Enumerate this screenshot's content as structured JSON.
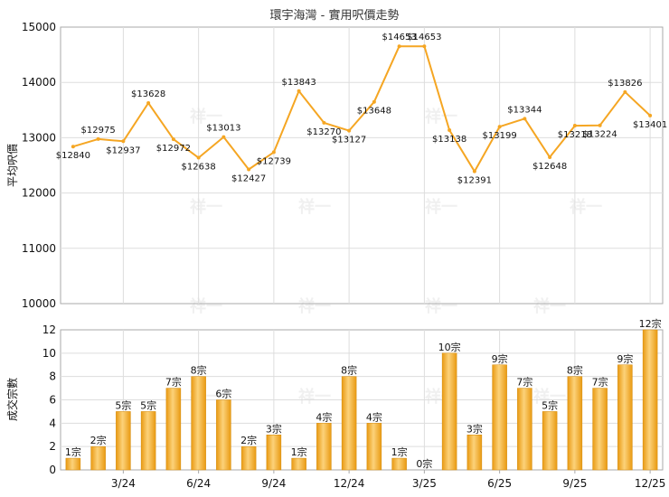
{
  "title": "環宇海灣 - 實用呎價走勢",
  "watermark": "祥一",
  "chart_data": [
    {
      "type": "line",
      "ylabel": "平均呎價",
      "ylim": [
        10000,
        15000
      ],
      "yticks": [
        10000,
        11000,
        12000,
        13000,
        14000,
        15000
      ],
      "values": [
        12840,
        12975,
        12937,
        13628,
        12972,
        12638,
        13013,
        12427,
        12739,
        13843,
        13270,
        13127,
        13648,
        14653,
        14653,
        13138,
        12391,
        13199,
        13344,
        12648,
        13218,
        13224,
        13826,
        13401
      ],
      "labels": [
        "$12840",
        "$12975",
        "$12937",
        "$13628",
        "$12972",
        "$12638",
        "$13013",
        "$12427",
        "$12739",
        "$13843",
        "$13270",
        "$13127",
        "$13648",
        "$14653",
        "$14653",
        "$13138",
        "$12391",
        "$13199",
        "$13344",
        "$12648",
        "$13218",
        "$13224",
        "$13826",
        "$13401"
      ],
      "color": "#f5a623",
      "grid": true
    },
    {
      "type": "bar",
      "ylabel": "成交宗數",
      "ylim": [
        0,
        12
      ],
      "yticks": [
        0,
        2,
        4,
        6,
        8,
        10,
        12
      ],
      "xticks": [
        {
          "index": 2,
          "label": "3/24"
        },
        {
          "index": 5,
          "label": "6/24"
        },
        {
          "index": 8,
          "label": "9/24"
        },
        {
          "index": 11,
          "label": "12/24"
        },
        {
          "index": 14,
          "label": "3/25"
        },
        {
          "index": 17,
          "label": "6/25"
        },
        {
          "index": 20,
          "label": "9/25"
        },
        {
          "index": 23,
          "label": "12/25"
        }
      ],
      "values": [
        1,
        2,
        5,
        5,
        7,
        8,
        6,
        2,
        3,
        1,
        4,
        8,
        4,
        1,
        0,
        10,
        3,
        9,
        7,
        5,
        8,
        7,
        9,
        12
      ],
      "labels": [
        "1宗",
        "2宗",
        "5宗",
        "5宗",
        "7宗",
        "8宗",
        "6宗",
        "2宗",
        "3宗",
        "1宗",
        "4宗",
        "8宗",
        "4宗",
        "1宗",
        "0宗",
        "10宗",
        "3宗",
        "9宗",
        "7宗",
        "5宗",
        "8宗",
        "7宗",
        "9宗",
        "12宗"
      ],
      "color": "#f5a623",
      "grid": true
    }
  ]
}
